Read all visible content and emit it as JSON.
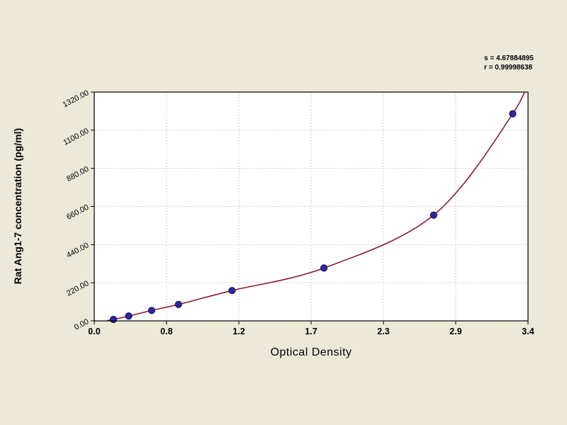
{
  "colors": {
    "background": "#ece9d8",
    "plot_background": "#ffffff",
    "grid": "#a6a6a6",
    "axis": "#000000",
    "curve": "#8e1c30",
    "point": "#2d26a3",
    "text": "#000000"
  },
  "annotation": {
    "line1": "s = 4.67884895",
    "line2": "r = 0.99998638"
  },
  "chart_data": {
    "type": "scatter",
    "title": "",
    "xlabel": "Optical Density",
    "ylabel": "Rat Ang1-7 concentration (pg/ml)",
    "xlim": [
      0,
      3.4
    ],
    "ylim": [
      0,
      1320
    ],
    "grid": true,
    "legend": "none",
    "x_ticks": [
      "0.0",
      "0.8",
      "1.2",
      "1.7",
      "2.3",
      "2.9",
      "3.4"
    ],
    "y_ticks": [
      "0.00",
      "220.00",
      "440.00",
      "660.00",
      "880.00",
      "1100.00",
      "1320.00"
    ],
    "y_tick_values": [
      0,
      220,
      440,
      660,
      880,
      1100,
      1320
    ],
    "points": [
      [
        0.15,
        8
      ],
      [
        0.27,
        28
      ],
      [
        0.45,
        60
      ],
      [
        0.66,
        95
      ],
      [
        1.08,
        175
      ],
      [
        1.8,
        305
      ],
      [
        2.66,
        610
      ],
      [
        3.28,
        1195
      ]
    ],
    "curve_start": [
      0.1,
      2
    ],
    "curve_end": [
      3.42,
      1440
    ],
    "curve_color": "#8e1c30",
    "point_color": "#2d26a3"
  }
}
